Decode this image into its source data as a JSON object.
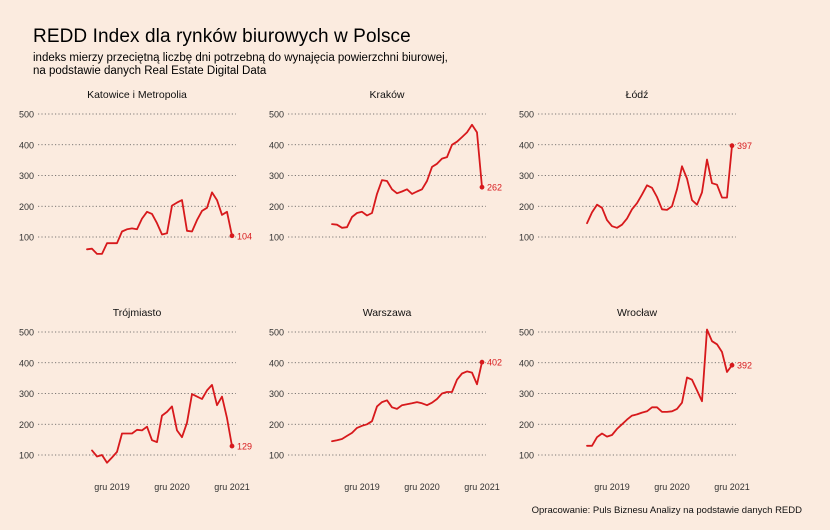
{
  "title": "REDD Index dla rynków biurowych w Polsce",
  "subtitle_line1": "indeks mierzy przeciętną liczbę dni potrzebną do wynajęcia powierzchni biurowej,",
  "subtitle_line2": "na podstawie danych Real Estate Digital Data",
  "caption": "Opracowanie: Puls Biznesu Analizy na podstawie danych REDD",
  "colors": {
    "line": "#d7191c",
    "background": "#fbebdf",
    "grid": "#555555"
  },
  "chart_data": {
    "type": "line",
    "layout": "small-multiples 3x2",
    "grid": "horizontal dotted",
    "ylim": [
      50,
      520
    ],
    "yticks": [
      100,
      200,
      300,
      400,
      500
    ],
    "x_range": [
      "2018-10",
      "2021-12"
    ],
    "xticks": [
      {
        "date": "2019-12",
        "label": "gru 2019"
      },
      {
        "date": "2020-12",
        "label": "gru 2020"
      },
      {
        "date": "2021-12",
        "label": "gru 2021"
      }
    ],
    "panels": [
      {
        "name": "Katowice i Metropolia",
        "end_label": "104",
        "values": [
          60,
          62,
          45,
          45,
          80,
          80,
          80,
          118,
          125,
          128,
          125,
          160,
          182,
          175,
          145,
          108,
          112,
          202,
          212,
          220,
          120,
          118,
          155,
          185,
          195,
          245,
          220,
          172,
          182,
          104
        ]
      },
      {
        "name": "Kraków",
        "end_label": "262",
        "values": [
          142,
          140,
          130,
          132,
          165,
          178,
          182,
          170,
          178,
          240,
          285,
          282,
          255,
          242,
          248,
          255,
          240,
          248,
          255,
          282,
          328,
          338,
          355,
          360,
          400,
          410,
          425,
          440,
          465,
          440,
          262
        ]
      },
      {
        "name": "Łódź",
        "end_label": "397",
        "values": [
          145,
          180,
          205,
          195,
          155,
          135,
          130,
          140,
          160,
          190,
          210,
          238,
          268,
          260,
          230,
          190,
          188,
          200,
          255,
          330,
          290,
          220,
          205,
          245,
          352,
          275,
          270,
          228,
          228,
          397
        ]
      },
      {
        "name": "Trójmiasto",
        "end_label": "129",
        "values": [
          115,
          95,
          100,
          75,
          92,
          110,
          170,
          170,
          170,
          182,
          180,
          192,
          148,
          142,
          228,
          240,
          258,
          180,
          158,
          205,
          298,
          290,
          282,
          310,
          328,
          262,
          290,
          220,
          129
        ]
      },
      {
        "name": "Warszawa",
        "end_label": "402",
        "values": [
          145,
          148,
          152,
          162,
          172,
          188,
          195,
          200,
          210,
          258,
          272,
          278,
          255,
          250,
          262,
          265,
          268,
          272,
          268,
          262,
          270,
          282,
          300,
          305,
          305,
          345,
          365,
          372,
          368,
          330,
          402
        ]
      },
      {
        "name": "Wrocław",
        "end_label": "392",
        "values": [
          130,
          130,
          158,
          170,
          160,
          165,
          185,
          200,
          215,
          228,
          232,
          238,
          242,
          255,
          255,
          240,
          240,
          242,
          250,
          270,
          352,
          345,
          310,
          275,
          508,
          470,
          460,
          435,
          370,
          392
        ]
      }
    ]
  }
}
